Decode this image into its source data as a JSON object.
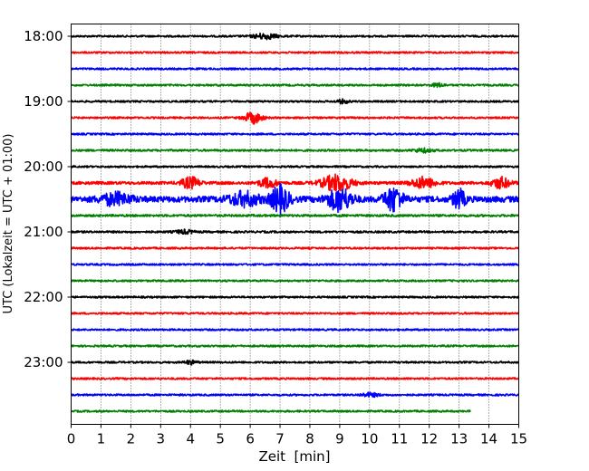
{
  "chart_data": {
    "type": "line",
    "title": "",
    "xlabel": "Zeit  [min]",
    "ylabel": "UTC (Lokalzeit = UTC + 01:00)",
    "xlim": [
      0,
      15
    ],
    "x_ticks": [
      0,
      1,
      2,
      3,
      4,
      5,
      6,
      7,
      8,
      9,
      10,
      11,
      12,
      13,
      14,
      15
    ],
    "x_tick_labels": [
      "0",
      "1",
      "2",
      "3",
      "4",
      "5",
      "6",
      "7",
      "8",
      "9",
      "10",
      "11",
      "12",
      "13",
      "14",
      "15"
    ],
    "y_tick_labels": [
      "18:00",
      "19:00",
      "20:00",
      "21:00",
      "22:00",
      "23:00"
    ],
    "grid": "vertical-dotted",
    "trace_colors": [
      "#000000",
      "#ff0000",
      "#0000ff",
      "#008000"
    ],
    "traces": [
      {
        "start": "18:00",
        "color": "#000000",
        "end_min": 15,
        "noise": 1.0,
        "events": [
          {
            "t": 6.5,
            "amp": 3,
            "width": 0.4
          }
        ]
      },
      {
        "start": "18:15",
        "color": "#ff0000",
        "end_min": 15,
        "noise": 1.0,
        "events": []
      },
      {
        "start": "18:30",
        "color": "#0000ff",
        "end_min": 15,
        "noise": 1.0,
        "events": []
      },
      {
        "start": "18:45",
        "color": "#008000",
        "end_min": 15,
        "noise": 1.0,
        "events": [
          {
            "t": 12.3,
            "amp": 2,
            "width": 0.2
          }
        ]
      },
      {
        "start": "19:00",
        "color": "#000000",
        "end_min": 15,
        "noise": 1.0,
        "events": [
          {
            "t": 9.1,
            "amp": 2,
            "width": 0.2
          }
        ]
      },
      {
        "start": "19:15",
        "color": "#ff0000",
        "end_min": 15,
        "noise": 1.0,
        "events": [
          {
            "t": 6.1,
            "amp": 6,
            "width": 0.3
          }
        ]
      },
      {
        "start": "19:30",
        "color": "#0000ff",
        "end_min": 15,
        "noise": 1.0,
        "events": []
      },
      {
        "start": "19:45",
        "color": "#008000",
        "end_min": 15,
        "noise": 1.1,
        "events": [
          {
            "t": 11.8,
            "amp": 2,
            "width": 0.3
          }
        ]
      },
      {
        "start": "20:00",
        "color": "#000000",
        "end_min": 15,
        "noise": 1.0,
        "events": []
      },
      {
        "start": "20:15",
        "color": "#ff0000",
        "end_min": 15,
        "noise": 1.6,
        "events": [
          {
            "t": 4.0,
            "amp": 6,
            "width": 0.3
          },
          {
            "t": 6.6,
            "amp": 5,
            "width": 0.3
          },
          {
            "t": 8.9,
            "amp": 9,
            "width": 0.5
          },
          {
            "t": 11.8,
            "amp": 6,
            "width": 0.4
          },
          {
            "t": 14.4,
            "amp": 6,
            "width": 0.3
          }
        ]
      },
      {
        "start": "20:30",
        "color": "#0000ff",
        "end_min": 15,
        "noise": 3.2,
        "events": [
          {
            "t": 1.5,
            "amp": 6,
            "width": 0.5
          },
          {
            "t": 5.8,
            "amp": 7,
            "width": 0.5
          },
          {
            "t": 7.0,
            "amp": 14,
            "width": 0.3
          },
          {
            "t": 9.0,
            "amp": 12,
            "width": 0.4
          },
          {
            "t": 10.8,
            "amp": 13,
            "width": 0.3
          },
          {
            "t": 13.0,
            "amp": 10,
            "width": 0.2
          }
        ]
      },
      {
        "start": "20:45",
        "color": "#008000",
        "end_min": 15,
        "noise": 1.2,
        "events": []
      },
      {
        "start": "21:00",
        "color": "#000000",
        "end_min": 15,
        "noise": 1.1,
        "events": [
          {
            "t": 3.8,
            "amp": 2,
            "width": 0.3
          }
        ]
      },
      {
        "start": "21:15",
        "color": "#ff0000",
        "end_min": 15,
        "noise": 1.0,
        "events": []
      },
      {
        "start": "21:30",
        "color": "#0000ff",
        "end_min": 15,
        "noise": 1.0,
        "events": []
      },
      {
        "start": "21:45",
        "color": "#008000",
        "end_min": 15,
        "noise": 1.0,
        "events": []
      },
      {
        "start": "22:00",
        "color": "#000000",
        "end_min": 15,
        "noise": 1.0,
        "events": []
      },
      {
        "start": "22:15",
        "color": "#ff0000",
        "end_min": 15,
        "noise": 1.0,
        "events": []
      },
      {
        "start": "22:30",
        "color": "#0000ff",
        "end_min": 15,
        "noise": 1.0,
        "events": []
      },
      {
        "start": "22:45",
        "color": "#008000",
        "end_min": 15,
        "noise": 1.0,
        "events": []
      },
      {
        "start": "23:00",
        "color": "#000000",
        "end_min": 15,
        "noise": 1.0,
        "events": [
          {
            "t": 4.0,
            "amp": 2,
            "width": 0.2
          }
        ]
      },
      {
        "start": "23:15",
        "color": "#ff0000",
        "end_min": 15,
        "noise": 1.0,
        "events": []
      },
      {
        "start": "23:30",
        "color": "#0000ff",
        "end_min": 15,
        "noise": 1.0,
        "events": [
          {
            "t": 10.0,
            "amp": 2,
            "width": 0.3
          }
        ]
      },
      {
        "start": "23:45",
        "color": "#008000",
        "end_min": 13.4,
        "noise": 1.0,
        "events": []
      }
    ]
  }
}
